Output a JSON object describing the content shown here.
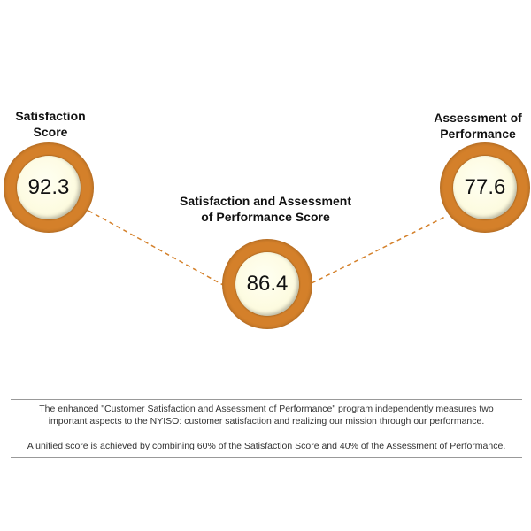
{
  "accent_color": "#d4802a",
  "scores": [
    {
      "label_line1": "Satisfaction",
      "label_line2": "Score",
      "value": "92.3"
    },
    {
      "label_line1": "Satisfaction and Assessment",
      "label_line2": "of Performance Score",
      "value": "86.4"
    },
    {
      "label_line1": "Assessment of",
      "label_line2": "Performance",
      "value": "77.6"
    }
  ],
  "note": {
    "paragraph1": "The enhanced \"Customer Satisfaction and Assessment of Performance\" program independently measures two important aspects to the NYISO: customer satisfaction and realizing our mission through our performance.",
    "paragraph2": "A unified score is achieved by combining 60% of the Satisfaction Score and 40% of the Assessment of Performance."
  }
}
